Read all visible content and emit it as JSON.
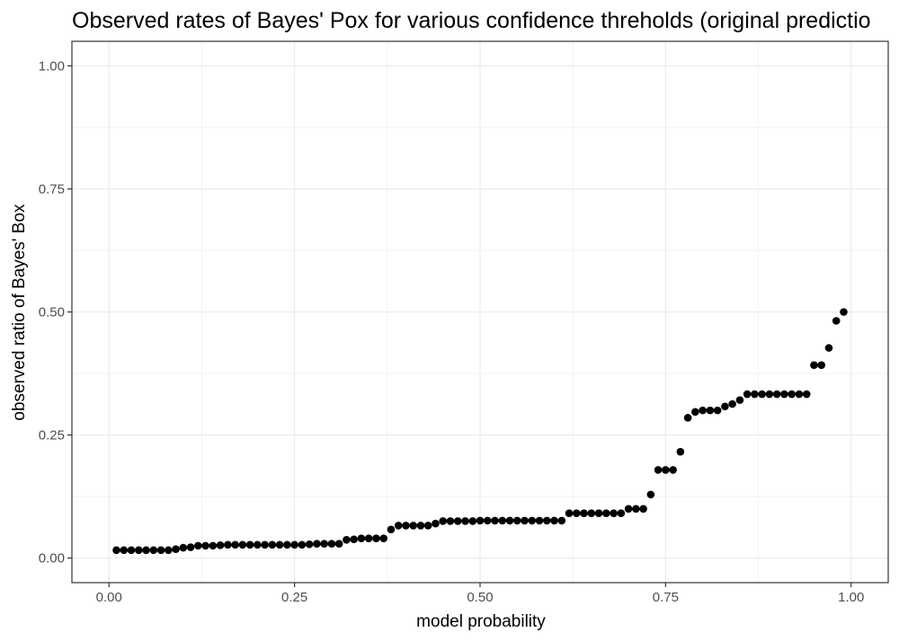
{
  "chart_data": {
    "type": "scatter",
    "title": "Observed rates of Bayes' Pox for various confidence threholds (original predictio",
    "xlabel": "model probability",
    "ylabel": "observed ratio of Bayes' Box",
    "xlim": [
      -0.05,
      1.05
    ],
    "ylim": [
      -0.05,
      1.05
    ],
    "x_ticks": [
      "0.00",
      "0.25",
      "0.50",
      "0.75",
      "1.00"
    ],
    "y_ticks": [
      "0.00",
      "0.25",
      "0.50",
      "0.75",
      "1.00"
    ],
    "grid": true,
    "theme": "bw",
    "point_color": "#000000",
    "x": [
      0.01,
      0.02,
      0.03,
      0.04,
      0.05,
      0.06,
      0.07,
      0.08,
      0.09,
      0.1,
      0.11,
      0.12,
      0.13,
      0.14,
      0.15,
      0.16,
      0.17,
      0.18,
      0.19,
      0.2,
      0.21,
      0.22,
      0.23,
      0.24,
      0.25,
      0.26,
      0.27,
      0.28,
      0.29,
      0.3,
      0.31,
      0.32,
      0.33,
      0.34,
      0.35,
      0.36,
      0.37,
      0.38,
      0.39,
      0.4,
      0.41,
      0.42,
      0.43,
      0.44,
      0.45,
      0.46,
      0.47,
      0.48,
      0.49,
      0.5,
      0.51,
      0.52,
      0.53,
      0.54,
      0.55,
      0.56,
      0.57,
      0.58,
      0.59,
      0.6,
      0.61,
      0.62,
      0.63,
      0.64,
      0.65,
      0.66,
      0.67,
      0.68,
      0.69,
      0.7,
      0.71,
      0.72,
      0.73,
      0.74,
      0.75,
      0.76,
      0.77,
      0.78,
      0.79,
      0.8,
      0.81,
      0.82,
      0.83,
      0.84,
      0.85,
      0.86,
      0.87,
      0.88,
      0.89,
      0.9,
      0.91,
      0.92,
      0.93,
      0.94,
      0.95,
      0.96,
      0.97,
      0.98,
      0.99
    ],
    "y": [
      0.016,
      0.016,
      0.016,
      0.016,
      0.016,
      0.016,
      0.016,
      0.016,
      0.018,
      0.021,
      0.022,
      0.025,
      0.025,
      0.025,
      0.026,
      0.027,
      0.027,
      0.027,
      0.027,
      0.027,
      0.027,
      0.027,
      0.027,
      0.027,
      0.027,
      0.027,
      0.028,
      0.029,
      0.029,
      0.029,
      0.029,
      0.037,
      0.038,
      0.04,
      0.04,
      0.04,
      0.04,
      0.058,
      0.066,
      0.066,
      0.066,
      0.066,
      0.066,
      0.07,
      0.075,
      0.075,
      0.075,
      0.075,
      0.075,
      0.076,
      0.076,
      0.076,
      0.076,
      0.076,
      0.076,
      0.076,
      0.076,
      0.076,
      0.076,
      0.076,
      0.076,
      0.091,
      0.091,
      0.091,
      0.091,
      0.091,
      0.091,
      0.091,
      0.091,
      0.1,
      0.1,
      0.1,
      0.129,
      0.179,
      0.179,
      0.179,
      0.216,
      0.285,
      0.297,
      0.3,
      0.3,
      0.3,
      0.308,
      0.313,
      0.321,
      0.333,
      0.333,
      0.333,
      0.333,
      0.333,
      0.333,
      0.333,
      0.333,
      0.333,
      0.392,
      0.392,
      0.427,
      0.482,
      0.5
    ]
  }
}
